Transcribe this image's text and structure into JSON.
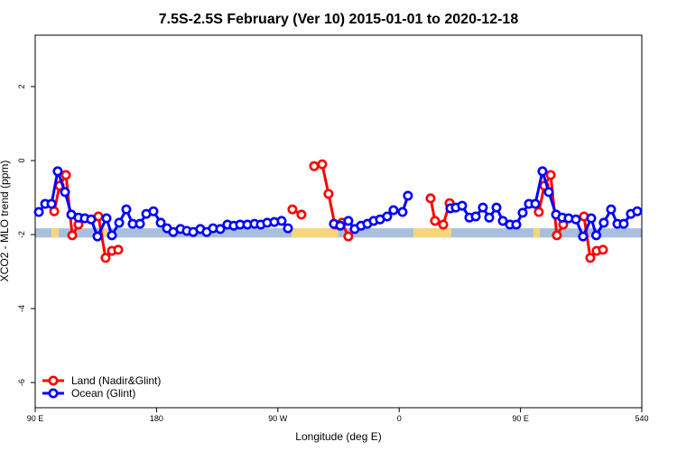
{
  "chart_data": {
    "type": "line",
    "title": "7.5S-2.5S February (Ver 10)   2015-01-01 to 2020-12-18",
    "x_label": "Longitude (deg E)",
    "y_label": "XCO2 - MLO trend (ppm)",
    "xlim": [
      90,
      540
    ],
    "ylim": [
      -6.68,
      3.39
    ],
    "xticks": [
      {
        "value": 90,
        "label": "90 E"
      },
      180,
      {
        "value": 270,
        "label": "90 W"
      },
      {
        "value": 360,
        "label": "0"
      },
      {
        "value": 450,
        "label": "90 E"
      },
      540
    ],
    "yticks": [
      -6,
      -4,
      -2,
      0,
      2
    ],
    "legend": "bottom-left",
    "surface_band": {
      "ylim": [
        -1.83,
        -2.08
      ],
      "segments": [
        {
          "x": [
            90,
            540
          ],
          "color": "#a8c0de"
        },
        {
          "x": [
            102,
            107.4
          ],
          "color": "#f7d57a"
        },
        {
          "x": [
            141,
            144
          ],
          "color": "#f7d57a"
        },
        {
          "x": [
            280.2,
            315
          ],
          "color": "#f7d57a"
        },
        {
          "x": [
            370.6,
            398.7
          ],
          "color": "#f7d57a"
        },
        {
          "x": [
            459.6,
            464.3
          ],
          "color": "#f7d57a"
        },
        {
          "x": [
            495.8,
            499
          ],
          "color": "#f7d57a"
        }
      ]
    },
    "series": [
      {
        "name": "Land (Nadir&Glint)",
        "color": "#ff0000",
        "x": [
          104.1,
          108.1,
          112.8,
          117.5,
          122.1,
          null,
          136.9,
          142.2,
          146.9,
          151.6,
          null,
          280.8,
          287.5,
          null,
          296.9,
          302.9,
          307.6,
          312.3,
          317.7,
          322.3,
          null,
          383.3,
          386.6,
          392.7,
          397.4,
          null,
          463.6,
          467.7,
          472.4,
          477.0,
          481.7,
          null,
          497.1,
          501.8,
          506.5,
          511.2
        ],
        "values": [
          -1.37,
          -0.68,
          -0.39,
          -2.02,
          -1.73,
          null,
          -1.51,
          -2.63,
          -2.44,
          -2.41,
          null,
          -1.32,
          -1.46,
          null,
          -0.15,
          -0.1,
          -0.9,
          -1.73,
          -1.68,
          -2.05,
          null,
          -1.02,
          -1.63,
          -1.73,
          -1.15,
          null,
          -1.39,
          -0.68,
          -0.39,
          -2.02,
          -1.73,
          null,
          -1.51,
          -2.63,
          -2.44,
          -2.41
        ]
      },
      {
        "name": "Ocean (Glint)",
        "color": "#0000ff",
        "x": [
          92.7,
          97.4,
          102.1,
          106.7,
          112.1,
          116.8,
          122.1,
          126.8,
          131.5,
          136.2,
          142.9,
          146.9,
          152.3,
          157.6,
          162.3,
          167.7,
          172.4,
          177.7,
          183.1,
          187.8,
          192.4,
          197.8,
          202.5,
          207.2,
          212.5,
          217.2,
          221.9,
          227.3,
          232.6,
          237.3,
          242.0,
          247.4,
          252.7,
          257.4,
          262.1,
          267.4,
          272.8,
          277.5,
          null,
          311.6,
          316.3,
          322.3,
          327.0,
          331.7,
          336.4,
          341.1,
          345.8,
          351.1,
          355.8,
          362.5,
          366.5,
          null,
          398.0,
          402.0,
          406.7,
          412.1,
          416.8,
          422.1,
          426.8,
          432.2,
          436.9,
          442.2,
          446.9,
          451.6,
          456.3,
          461.0,
          466.3,
          471.0,
          476.4,
          481.0,
          485.7,
          491.1,
          496.4,
          502.5,
          506.2,
          511.8,
          517.2,
          521.9,
          526.6,
          531.9,
          536.6
        ],
        "values": [
          -1.39,
          -1.17,
          -1.17,
          -0.29,
          -0.85,
          -1.46,
          -1.54,
          -1.56,
          -1.59,
          -2.05,
          -1.56,
          -2.02,
          -1.68,
          -1.32,
          -1.71,
          -1.71,
          -1.44,
          -1.37,
          -1.68,
          -1.83,
          -1.93,
          -1.85,
          -1.9,
          -1.93,
          -1.85,
          -1.93,
          -1.83,
          -1.85,
          -1.73,
          -1.76,
          -1.73,
          -1.73,
          -1.71,
          -1.73,
          -1.68,
          -1.66,
          -1.63,
          -1.83,
          null,
          -1.71,
          -1.76,
          -1.63,
          -1.85,
          -1.76,
          -1.71,
          -1.63,
          -1.59,
          -1.51,
          -1.34,
          -1.39,
          -0.95,
          null,
          -1.29,
          -1.27,
          -1.22,
          -1.54,
          -1.51,
          -1.27,
          -1.54,
          -1.27,
          -1.63,
          -1.73,
          -1.73,
          -1.41,
          -1.17,
          -1.17,
          -0.29,
          -0.85,
          -1.46,
          -1.54,
          -1.56,
          -1.59,
          -2.05,
          -1.56,
          -2.02,
          -1.68,
          -1.32,
          -1.71,
          -1.71,
          -1.44,
          -1.37
        ]
      }
    ]
  }
}
